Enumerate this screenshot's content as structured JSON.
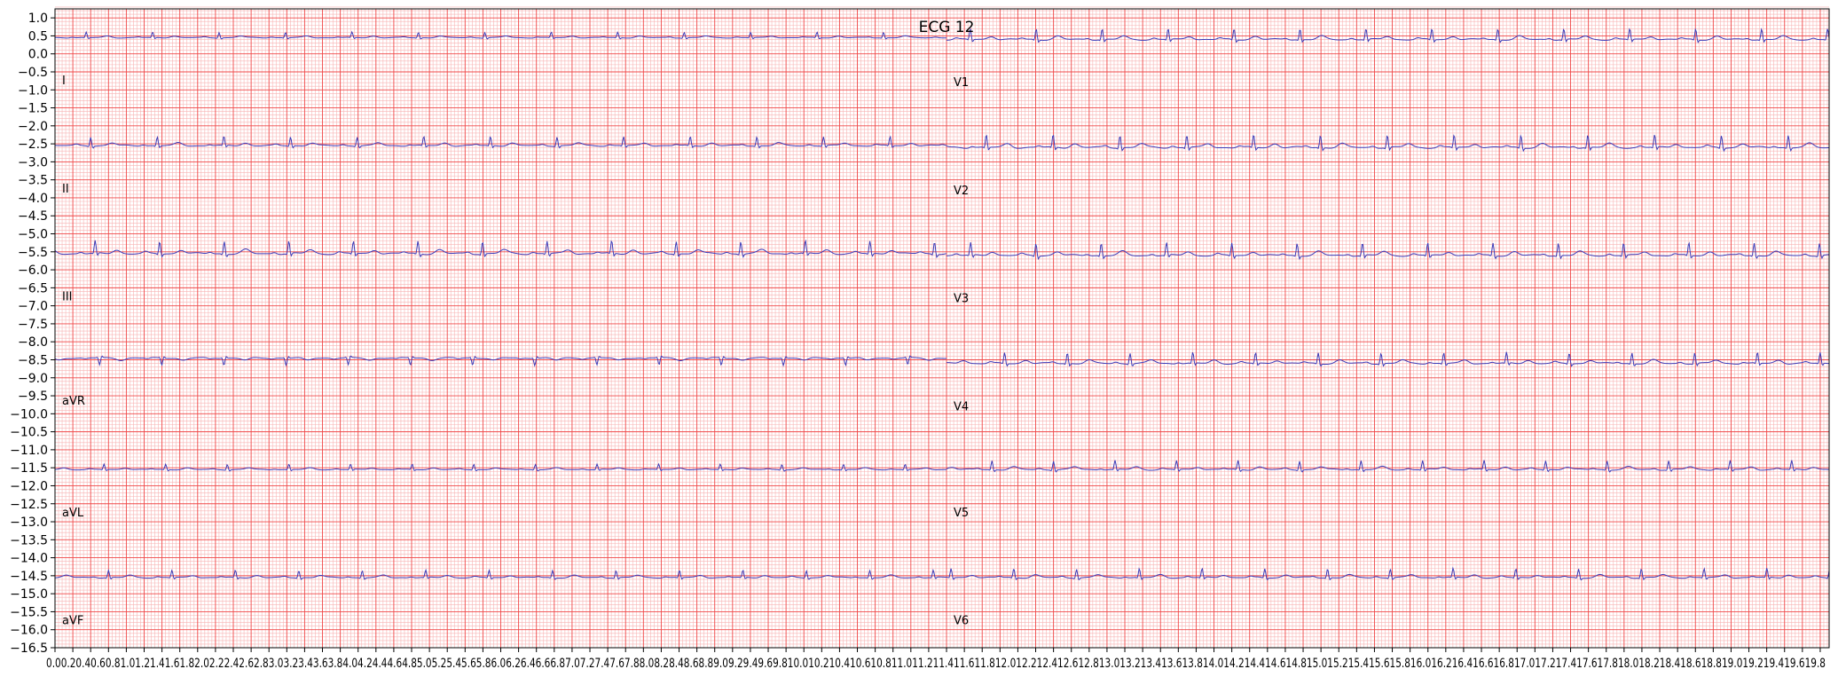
{
  "chart_data": {
    "type": "line",
    "title": "ECG 12",
    "xlabel": "",
    "ylabel": "",
    "xlim": [
      0,
      19.9
    ],
    "ylim": [
      -16.5,
      1.25
    ],
    "grid": "on",
    "legend": "none",
    "colors": {
      "trace": "#3b3bb8",
      "major_grid": "#f04848",
      "minor_grid": "#f8b4b4",
      "background": "#ffffff",
      "axis": "#000000"
    },
    "yticks": [
      1.0,
      0.5,
      0.0,
      -0.5,
      -1.0,
      -1.5,
      -2.0,
      -2.5,
      -3.0,
      -3.5,
      -4.0,
      -4.5,
      -5.0,
      -5.5,
      -6.0,
      -6.5,
      -7.0,
      -7.5,
      -8.0,
      -8.5,
      -9.0,
      -9.5,
      -10.0,
      -10.5,
      -11.0,
      -11.5,
      -12.0,
      -12.5,
      -13.0,
      -13.5,
      -14.0,
      -14.5,
      -15.0,
      -15.5,
      -16.0,
      -16.5
    ],
    "ytick_labels": [
      "1.0",
      "0.5",
      "0.0",
      "−0.5",
      "−1.0",
      "−1.5",
      "−2.0",
      "−2.5",
      "−3.0",
      "−3.5",
      "−4.0",
      "−4.5",
      "−5.0",
      "−5.5",
      "−6.0",
      "−6.5",
      "−7.0",
      "−7.5",
      "−8.0",
      "−8.5",
      "−9.0",
      "−9.5",
      "−10.0",
      "−10.5",
      "−11.0",
      "−11.5",
      "−12.0",
      "−12.5",
      "−13.0",
      "−13.5",
      "−14.0",
      "−14.5",
      "−15.0",
      "−15.5",
      "−16.0",
      "−16.5"
    ],
    "xtick_step": 0.2,
    "xtick_labels_row": "0.00.20.40.60.81.01.21.41.61.82.02.22.42.62.83.03.23.43.63.84.04.24.44.64.85.05.25.45.65.86.06.26.46.66.87.07.27.47.67.88.08.28.48.68.89.09.29.49.69.810.010.210.410.610.811.011.211.411.611.812.012.212.412.612.813.013.213.413.613.814.014.214.414.614.815.015.215.415.615.816.016.216.416.616.817.017.217.417.617.818.018.218.418.618.819.019.219.419.619.8",
    "segment_duration": 2.5,
    "leads": [
      {
        "name": "I",
        "baseline": 0.45,
        "amp": 0.15,
        "column": 0,
        "row": 0
      },
      {
        "name": "II",
        "baseline": -2.55,
        "amp": 0.25,
        "column": 0,
        "row": 1
      },
      {
        "name": "III",
        "baseline": -5.55,
        "amp": 0.35,
        "column": 0,
        "row": 2
      },
      {
        "name": "aVR",
        "baseline": -8.45,
        "amp": -0.2,
        "column": 0,
        "row": 3
      },
      {
        "name": "aVL",
        "baseline": -11.55,
        "amp": 0.15,
        "column": 0,
        "row": 4
      },
      {
        "name": "aVF",
        "baseline": -14.55,
        "amp": 0.2,
        "column": 0,
        "row": 5
      },
      {
        "name": "V1",
        "baseline": 0.4,
        "amp": 0.3,
        "column": 1,
        "row": 0
      },
      {
        "name": "V2",
        "baseline": -2.6,
        "amp": 0.35,
        "column": 1,
        "row": 1
      },
      {
        "name": "V3",
        "baseline": -5.6,
        "amp": 0.35,
        "column": 1,
        "row": 2
      },
      {
        "name": "V4",
        "baseline": -8.6,
        "amp": 0.3,
        "column": 1,
        "row": 3
      },
      {
        "name": "V5",
        "baseline": -11.55,
        "amp": 0.25,
        "column": 1,
        "row": 4
      },
      {
        "name": "V6",
        "baseline": -14.55,
        "amp": 0.25,
        "column": 1,
        "row": 5
      }
    ]
  }
}
